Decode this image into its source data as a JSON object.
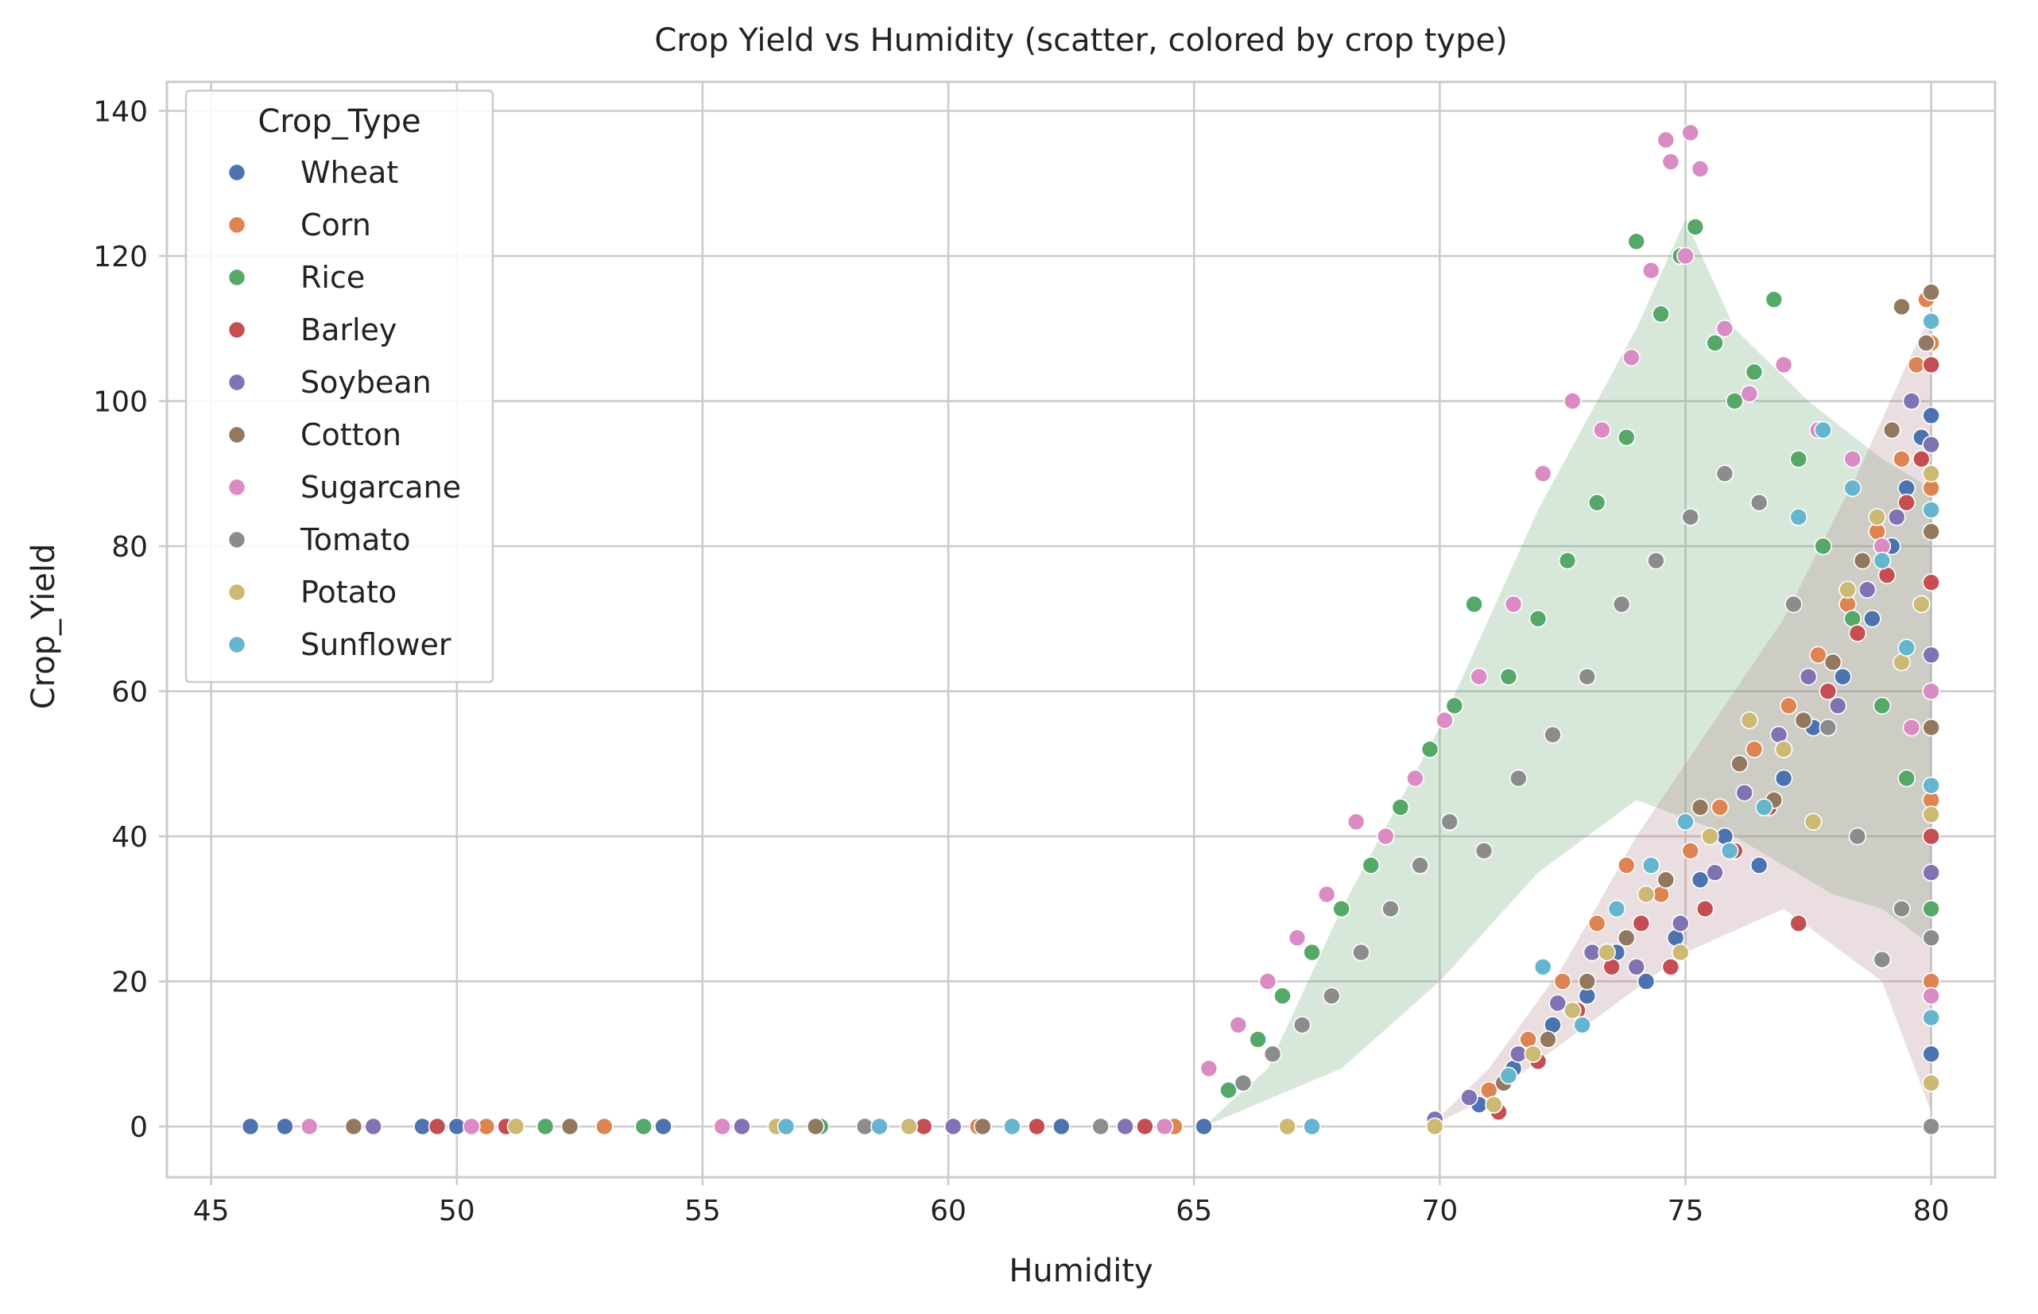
{
  "chart_data": {
    "type": "scatter",
    "title": "Crop Yield vs Humidity (scatter, colored by crop type)",
    "xlabel": "Humidity",
    "ylabel": "Crop_Yield",
    "xlim": [
      44.1,
      81.3
    ],
    "ylim": [
      -7,
      144
    ],
    "xticks": [
      45,
      50,
      55,
      60,
      65,
      70,
      75,
      80
    ],
    "yticks": [
      0,
      20,
      40,
      60,
      80,
      100,
      120,
      140
    ],
    "grid": true,
    "legend": {
      "title": "Crop_Type",
      "placement": "top-left",
      "entries": [
        "Wheat",
        "Corn",
        "Rice",
        "Barley",
        "Soybean",
        "Cotton",
        "Sugarcane",
        "Tomato",
        "Potato",
        "Sunflower"
      ]
    },
    "series": [
      {
        "name": "Wheat",
        "color": "#4C72B0",
        "group": "low",
        "points": [
          [
            45.8,
            0
          ],
          [
            46.5,
            0
          ],
          [
            49.3,
            0
          ],
          [
            50.0,
            0
          ],
          [
            54.2,
            0
          ],
          [
            62.3,
            0
          ],
          [
            65.2,
            0
          ],
          [
            70.8,
            3
          ],
          [
            71.5,
            8
          ],
          [
            72.3,
            14
          ],
          [
            73.0,
            18
          ],
          [
            73.6,
            24
          ],
          [
            74.2,
            20
          ],
          [
            74.8,
            26
          ],
          [
            75.3,
            34
          ],
          [
            75.8,
            40
          ],
          [
            76.5,
            36
          ],
          [
            77.0,
            48
          ],
          [
            77.6,
            55
          ],
          [
            78.2,
            62
          ],
          [
            78.8,
            70
          ],
          [
            79.2,
            80
          ],
          [
            79.5,
            88
          ],
          [
            79.8,
            95
          ],
          [
            80.0,
            10
          ],
          [
            80.0,
            60
          ],
          [
            80.0,
            98
          ]
        ]
      },
      {
        "name": "Corn",
        "color": "#DD8452",
        "group": "low",
        "points": [
          [
            50.6,
            0
          ],
          [
            53.0,
            0
          ],
          [
            60.6,
            0
          ],
          [
            64.6,
            0
          ],
          [
            71.0,
            5
          ],
          [
            71.8,
            12
          ],
          [
            72.5,
            20
          ],
          [
            73.2,
            28
          ],
          [
            73.8,
            36
          ],
          [
            74.5,
            32
          ],
          [
            75.1,
            38
          ],
          [
            75.7,
            44
          ],
          [
            76.4,
            52
          ],
          [
            77.1,
            58
          ],
          [
            77.7,
            65
          ],
          [
            78.3,
            72
          ],
          [
            78.9,
            82
          ],
          [
            79.4,
            92
          ],
          [
            79.7,
            105
          ],
          [
            79.9,
            114
          ],
          [
            80.0,
            20
          ],
          [
            80.0,
            45
          ],
          [
            80.0,
            88
          ],
          [
            80.0,
            108
          ]
        ]
      },
      {
        "name": "Rice",
        "color": "#55A868",
        "group": "high",
        "points": [
          [
            51.8,
            0
          ],
          [
            53.8,
            0
          ],
          [
            57.4,
            0
          ],
          [
            61.8,
            0
          ],
          [
            65.7,
            5
          ],
          [
            66.3,
            12
          ],
          [
            66.8,
            18
          ],
          [
            67.4,
            24
          ],
          [
            68.0,
            30
          ],
          [
            68.6,
            36
          ],
          [
            69.2,
            44
          ],
          [
            69.8,
            52
          ],
          [
            70.3,
            58
          ],
          [
            70.7,
            72
          ],
          [
            71.4,
            62
          ],
          [
            72.0,
            70
          ],
          [
            72.6,
            78
          ],
          [
            73.2,
            86
          ],
          [
            73.8,
            95
          ],
          [
            74.0,
            122
          ],
          [
            74.5,
            112
          ],
          [
            74.9,
            120
          ],
          [
            75.2,
            124
          ],
          [
            75.6,
            108
          ],
          [
            76.0,
            100
          ],
          [
            76.4,
            104
          ],
          [
            76.8,
            114
          ],
          [
            77.3,
            92
          ],
          [
            77.8,
            80
          ],
          [
            78.4,
            70
          ],
          [
            79.0,
            58
          ],
          [
            79.5,
            48
          ],
          [
            80.0,
            30
          ],
          [
            80.0,
            40
          ]
        ]
      },
      {
        "name": "Barley",
        "color": "#C44E52",
        "group": "low",
        "points": [
          [
            49.6,
            0
          ],
          [
            51.0,
            0
          ],
          [
            59.5,
            0
          ],
          [
            61.8,
            0
          ],
          [
            64.0,
            0
          ],
          [
            71.2,
            2
          ],
          [
            72.0,
            9
          ],
          [
            72.8,
            16
          ],
          [
            73.5,
            22
          ],
          [
            74.1,
            28
          ],
          [
            74.7,
            22
          ],
          [
            75.4,
            30
          ],
          [
            76.0,
            38
          ],
          [
            76.7,
            44
          ],
          [
            77.3,
            28
          ],
          [
            77.9,
            60
          ],
          [
            78.5,
            68
          ],
          [
            79.1,
            76
          ],
          [
            79.5,
            86
          ],
          [
            79.8,
            92
          ],
          [
            80.0,
            40
          ],
          [
            80.0,
            75
          ],
          [
            80.0,
            105
          ]
        ]
      },
      {
        "name": "Soybean",
        "color": "#8172B3",
        "group": "low",
        "points": [
          [
            48.3,
            0
          ],
          [
            55.8,
            0
          ],
          [
            60.1,
            0
          ],
          [
            63.6,
            0
          ],
          [
            69.9,
            1
          ],
          [
            70.6,
            4
          ],
          [
            71.6,
            10
          ],
          [
            72.4,
            17
          ],
          [
            73.1,
            24
          ],
          [
            74.0,
            22
          ],
          [
            74.9,
            28
          ],
          [
            75.6,
            35
          ],
          [
            76.2,
            46
          ],
          [
            76.9,
            54
          ],
          [
            77.5,
            62
          ],
          [
            78.1,
            58
          ],
          [
            78.7,
            74
          ],
          [
            79.3,
            84
          ],
          [
            79.6,
            100
          ],
          [
            80.0,
            35
          ],
          [
            80.0,
            65
          ],
          [
            80.0,
            94
          ]
        ]
      },
      {
        "name": "Cotton",
        "color": "#937860",
        "group": "low",
        "points": [
          [
            47.9,
            0
          ],
          [
            52.3,
            0
          ],
          [
            57.3,
            0
          ],
          [
            60.7,
            0
          ],
          [
            71.3,
            6
          ],
          [
            72.2,
            12
          ],
          [
            73.0,
            20
          ],
          [
            73.8,
            26
          ],
          [
            74.6,
            34
          ],
          [
            75.3,
            44
          ],
          [
            76.1,
            50
          ],
          [
            76.8,
            45
          ],
          [
            77.4,
            56
          ],
          [
            78.0,
            64
          ],
          [
            78.6,
            78
          ],
          [
            79.2,
            96
          ],
          [
            79.4,
            113
          ],
          [
            79.9,
            108
          ],
          [
            80.0,
            55
          ],
          [
            80.0,
            82
          ],
          [
            80.0,
            115
          ]
        ]
      },
      {
        "name": "Sugarcane",
        "color": "#DA8BC3",
        "group": "high",
        "points": [
          [
            47.0,
            0
          ],
          [
            50.3,
            0
          ],
          [
            55.4,
            0
          ],
          [
            64.4,
            0
          ],
          [
            65.3,
            8
          ],
          [
            65.9,
            14
          ],
          [
            66.5,
            20
          ],
          [
            67.1,
            26
          ],
          [
            67.7,
            32
          ],
          [
            68.3,
            42
          ],
          [
            68.9,
            40
          ],
          [
            69.5,
            48
          ],
          [
            70.1,
            56
          ],
          [
            70.8,
            62
          ],
          [
            71.5,
            72
          ],
          [
            72.1,
            90
          ],
          [
            72.7,
            100
          ],
          [
            73.3,
            96
          ],
          [
            73.9,
            106
          ],
          [
            74.3,
            118
          ],
          [
            74.6,
            136
          ],
          [
            74.7,
            133
          ],
          [
            75.0,
            120
          ],
          [
            75.1,
            137
          ],
          [
            75.3,
            132
          ],
          [
            75.8,
            110
          ],
          [
            76.3,
            101
          ],
          [
            77.0,
            105
          ],
          [
            77.7,
            96
          ],
          [
            78.4,
            92
          ],
          [
            79.0,
            80
          ],
          [
            79.6,
            55
          ],
          [
            80.0,
            18
          ],
          [
            80.0,
            60
          ]
        ]
      },
      {
        "name": "Tomato",
        "color": "#8C8C8C",
        "group": "high",
        "points": [
          [
            58.3,
            0
          ],
          [
            63.1,
            0
          ],
          [
            66.0,
            6
          ],
          [
            66.6,
            10
          ],
          [
            67.2,
            14
          ],
          [
            67.8,
            18
          ],
          [
            68.4,
            24
          ],
          [
            69.0,
            30
          ],
          [
            69.6,
            36
          ],
          [
            70.2,
            42
          ],
          [
            70.9,
            38
          ],
          [
            71.6,
            48
          ],
          [
            72.3,
            54
          ],
          [
            73.0,
            62
          ],
          [
            73.7,
            72
          ],
          [
            74.4,
            78
          ],
          [
            75.1,
            84
          ],
          [
            75.8,
            90
          ],
          [
            76.5,
            86
          ],
          [
            77.2,
            72
          ],
          [
            77.9,
            55
          ],
          [
            78.5,
            40
          ],
          [
            79.0,
            23
          ],
          [
            79.4,
            30
          ],
          [
            80.0,
            0
          ],
          [
            80.0,
            26
          ]
        ]
      },
      {
        "name": "Potato",
        "color": "#CCB974",
        "group": "low",
        "points": [
          [
            51.2,
            0
          ],
          [
            56.5,
            0
          ],
          [
            59.2,
            0
          ],
          [
            66.9,
            0
          ],
          [
            69.9,
            0
          ],
          [
            71.1,
            3
          ],
          [
            71.9,
            10
          ],
          [
            72.7,
            16
          ],
          [
            73.4,
            24
          ],
          [
            74.2,
            32
          ],
          [
            74.9,
            24
          ],
          [
            75.5,
            40
          ],
          [
            76.3,
            56
          ],
          [
            77.0,
            52
          ],
          [
            77.6,
            42
          ],
          [
            78.3,
            74
          ],
          [
            78.9,
            84
          ],
          [
            79.4,
            64
          ],
          [
            79.8,
            72
          ],
          [
            80.0,
            6
          ],
          [
            80.0,
            43
          ],
          [
            80.0,
            90
          ]
        ]
      },
      {
        "name": "Sunflower",
        "color": "#64B5CD",
        "group": "low",
        "points": [
          [
            56.7,
            0
          ],
          [
            58.6,
            0
          ],
          [
            61.3,
            0
          ],
          [
            67.4,
            0
          ],
          [
            71.4,
            7
          ],
          [
            72.1,
            22
          ],
          [
            72.9,
            14
          ],
          [
            73.6,
            30
          ],
          [
            74.3,
            36
          ],
          [
            75.0,
            42
          ],
          [
            75.9,
            38
          ],
          [
            76.6,
            44
          ],
          [
            77.3,
            84
          ],
          [
            77.8,
            96
          ],
          [
            78.4,
            88
          ],
          [
            79.0,
            78
          ],
          [
            79.5,
            66
          ],
          [
            80.0,
            15
          ],
          [
            80.0,
            47
          ],
          [
            80.0,
            85
          ],
          [
            80.0,
            111
          ]
        ]
      }
    ]
  }
}
